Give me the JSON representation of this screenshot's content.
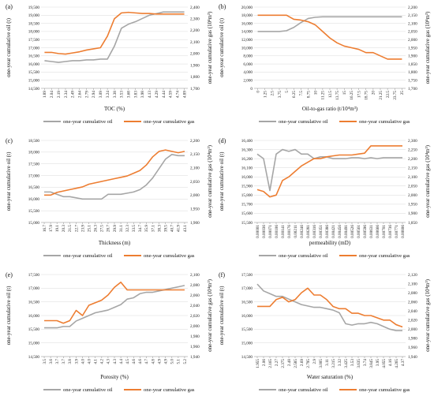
{
  "colors": {
    "oil": "#a6a6a6",
    "gas": "#ed7d31"
  },
  "legend": {
    "oil": "one-year cumulative oil",
    "gas": "one-year cumulative gas"
  },
  "chart_data": [
    {
      "type": "line",
      "panel": "(a)",
      "xlabel": "TOC (%)",
      "ylabel_left": "one-year cumulative oil (t)",
      "ylabel_right": "one-year cumulative gas (10⁴m³)",
      "ylim_left": [
        14500,
        19500
      ],
      "yticks_left": [
        14500,
        15000,
        15500,
        16000,
        16500,
        17000,
        17500,
        18000,
        18500,
        19000,
        19500
      ],
      "ylim_right": [
        1700,
        2400
      ],
      "yticks_right": [
        1700,
        1800,
        1900,
        2000,
        2100,
        2200,
        2300,
        2400
      ],
      "categories": [
        "1.89",
        "2.04",
        "2.19",
        "2.34",
        "2.49",
        "2.64",
        "2.79",
        "2.94",
        "3.09",
        "3.24",
        "3.38",
        "3.53",
        "3.68",
        "3.83",
        "3.98",
        "4.13",
        "4.29",
        "4.44",
        "4.59",
        "4.74",
        "4.89"
      ],
      "series": [
        {
          "name": "one-year cumulative oil",
          "axis": "left",
          "values": [
            16200,
            16150,
            16100,
            16150,
            16200,
            16200,
            16250,
            16250,
            16300,
            16300,
            17100,
            18200,
            18450,
            18600,
            18800,
            19000,
            19100,
            19200,
            19200,
            19200,
            19200
          ]
        },
        {
          "name": "one-year cumulative gas",
          "axis": "right",
          "values": [
            2010,
            2010,
            2000,
            1995,
            2005,
            2015,
            2030,
            2040,
            2050,
            2150,
            2300,
            2350,
            2355,
            2350,
            2345,
            2345,
            2340,
            2340,
            2340,
            2340,
            2340
          ]
        }
      ]
    },
    {
      "type": "line",
      "panel": "(b)",
      "xlabel": "Oil-to-gas ratio (t/10⁴m³)",
      "ylabel_left": "one-year cumulative oil (t)",
      "ylabel_right": "one-year cumulative gas (10⁴m³)",
      "ylim_left": [
        0,
        20000
      ],
      "yticks_left": [
        0,
        2000,
        4000,
        6000,
        8000,
        10000,
        12000,
        14000,
        16000,
        18000,
        20000
      ],
      "ylim_right": [
        1700,
        2200
      ],
      "yticks_right": [
        1700,
        1750,
        1800,
        1850,
        1900,
        1950,
        2000,
        2050,
        2100,
        2150,
        2200
      ],
      "categories": [
        "0",
        "1.25",
        "2.5",
        "3.75",
        "5",
        "6.25",
        "7.5",
        "8.75",
        "10",
        "11.25",
        "12.5",
        "13.75",
        "15",
        "16.25",
        "17.5",
        "18.75",
        "20",
        "21.25",
        "22.5",
        "23.75",
        "25"
      ],
      "series": [
        {
          "name": "one-year cumulative oil",
          "axis": "left",
          "values": [
            14000,
            14000,
            14000,
            14000,
            14200,
            15000,
            16200,
            17200,
            17500,
            17600,
            17600,
            17600,
            17600,
            17600,
            17600,
            17600,
            17600,
            17600,
            17600,
            17600,
            17600
          ]
        },
        {
          "name": "one-year cumulative gas",
          "axis": "right",
          "values": [
            2150,
            2150,
            2150,
            2150,
            2150,
            2125,
            2120,
            2110,
            2090,
            2050,
            2010,
            1980,
            1960,
            1950,
            1940,
            1920,
            1920,
            1900,
            1880,
            1880,
            1880
          ]
        }
      ]
    },
    {
      "type": "line",
      "panel": "(c)",
      "xlabel": "Thickness (m)",
      "ylabel_left": "one-year cumulative oil (t)",
      "ylabel_right": "one-year cumulative gas (10⁴m³)",
      "ylim_left": [
        15000,
        18500
      ],
      "yticks_left": [
        15000,
        15500,
        16000,
        16500,
        17000,
        17500,
        18000,
        18500
      ],
      "ylim_right": [
        1900,
        2200
      ],
      "yticks_right": [
        1900,
        1950,
        2000,
        2050,
        2100,
        2150,
        2200
      ],
      "categories": [
        "16.7",
        "17.9",
        "19.1",
        "20.3",
        "21.5",
        "22.7",
        "23.9",
        "25.1",
        "26.3",
        "27.5",
        "28.7",
        "29.9",
        "31.1",
        "32.3",
        "33.5",
        "34.7",
        "35.9",
        "37.1",
        "38.3",
        "39.5",
        "40.7",
        "41.9",
        "43.1"
      ],
      "series": [
        {
          "name": "one-year cumulative oil",
          "axis": "left",
          "values": [
            16300,
            16300,
            16200,
            16100,
            16100,
            16050,
            16000,
            16000,
            16000,
            16000,
            16200,
            16200,
            16200,
            16250,
            16300,
            16400,
            16600,
            16900,
            17300,
            17700,
            17900,
            17850,
            17850
          ]
        },
        {
          "name": "one-year cumulative gas",
          "axis": "right",
          "values": [
            2000,
            2000,
            2010,
            2015,
            2020,
            2025,
            2030,
            2040,
            2045,
            2050,
            2055,
            2060,
            2065,
            2070,
            2080,
            2090,
            2110,
            2140,
            2160,
            2165,
            2160,
            2155,
            2160
          ]
        }
      ]
    },
    {
      "type": "line",
      "panel": "(d)",
      "xlabel": "permeability (mD)",
      "ylabel_left": "one-year cumulative oil (t)",
      "ylabel_right": "one-year cumulative gas (10⁴m³)",
      "ylim_left": [
        15500,
        16400
      ],
      "yticks_left": [
        15500,
        15600,
        15700,
        15800,
        15900,
        16000,
        16100,
        16200,
        16300,
        16400
      ],
      "ylim_right": [
        1850,
        2300
      ],
      "yticks_right": [
        1850,
        1900,
        1950,
        2000,
        2050,
        2100,
        2150,
        2200,
        2250,
        2300
      ],
      "categories": [
        "0.00001",
        "0.00036",
        "0.00071",
        "0.00106",
        "0.00141",
        "0.00176",
        "0.00211",
        "0.00246",
        "0.00281",
        "0.00316",
        "0.00351",
        "0.00386",
        "0.00421",
        "0.00456",
        "0.00491",
        "0.00526",
        "0.00561",
        "0.00596",
        "0.00631",
        "0.00666",
        "0.00701",
        "0.00736",
        "0.00771",
        "0.00806"
      ],
      "series": [
        {
          "name": "one-year cumulative oil",
          "axis": "left",
          "values": [
            16250,
            16200,
            15850,
            16250,
            16300,
            16280,
            16300,
            16250,
            16250,
            16200,
            16220,
            16220,
            16200,
            16200,
            16200,
            16210,
            16210,
            16200,
            16210,
            16200,
            16210,
            16210,
            16210,
            16210
          ]
        },
        {
          "name": "one-year cumulative gas",
          "axis": "right",
          "values": [
            2030,
            2020,
            1990,
            2000,
            2080,
            2100,
            2130,
            2160,
            2180,
            2200,
            2200,
            2210,
            2215,
            2220,
            2220,
            2220,
            2225,
            2230,
            2270,
            2270,
            2270,
            2270,
            2270,
            2270
          ]
        }
      ]
    },
    {
      "type": "line",
      "panel": "(e)",
      "xlabel": "Porosity (%)",
      "ylabel_left": "one-year cumulative oil (t)",
      "ylabel_right": "one-year cumulative gas (10⁴m³)",
      "ylim_left": [
        14500,
        17500
      ],
      "yticks_left": [
        14500,
        15000,
        15500,
        16000,
        16500,
        17000,
        17500
      ],
      "ylim_right": [
        1940,
        2100
      ],
      "yticks_right": [
        1940,
        1960,
        1980,
        2000,
        2020,
        2040,
        2060,
        2080,
        2100
      ],
      "categories": [
        "3.5",
        "3.6",
        "3.7",
        "3.7",
        "3.8",
        "3.9",
        "4.0",
        "4.0",
        "4.1",
        "4.2",
        "4.3",
        "4.3",
        "4.4",
        "4.5",
        "4.6",
        "4.6",
        "4.7",
        "4.8",
        "4.9",
        "4.9",
        "5.0",
        "5.1",
        "5.2"
      ],
      "series": [
        {
          "name": "one-year cumulative oil",
          "axis": "left",
          "values": [
            15550,
            15550,
            15550,
            15600,
            15600,
            15800,
            15900,
            16000,
            16100,
            16150,
            16200,
            16300,
            16400,
            16600,
            16650,
            16800,
            16850,
            16850,
            16900,
            16950,
            17000,
            17050,
            17100
          ]
        },
        {
          "name": "one-year cumulative gas",
          "axis": "right",
          "values": [
            2010,
            2010,
            2010,
            2005,
            2010,
            2030,
            2020,
            2040,
            2045,
            2050,
            2060,
            2075,
            2085,
            2070,
            2070,
            2070,
            2070,
            2070,
            2070,
            2070,
            2070,
            2070,
            2070
          ]
        }
      ]
    },
    {
      "type": "line",
      "panel": "(f)",
      "xlabel": "Water saturation (%)",
      "ylabel_left": "one-year cumulative oil (t)",
      "ylabel_right": "one-year cumulative gas (10⁴m³)",
      "ylim_left": [
        14500,
        17500
      ],
      "yticks_left": [
        14500,
        15000,
        15500,
        16000,
        16500,
        17000,
        17500
      ],
      "ylim_right": [
        1940,
        2120
      ],
      "yticks_right": [
        1940,
        1960,
        1980,
        2000,
        2020,
        2040,
        2060,
        2080,
        2100,
        2120
      ],
      "categories": [
        "1.955",
        "2.06",
        "2.165",
        "2.27",
        "2.375",
        "2.48",
        "2.585",
        "2.69",
        "2.795",
        "2.9",
        "3.005",
        "3.11",
        "3.215",
        "3.32",
        "3.425",
        "3.53",
        "3.635",
        "3.74",
        "3.845",
        "3.95",
        "4.055",
        "4.16",
        "4.265",
        "4.37"
      ],
      "series": [
        {
          "name": "one-year cumulative oil",
          "axis": "left",
          "values": [
            17150,
            16900,
            16800,
            16700,
            16700,
            16600,
            16500,
            16400,
            16350,
            16300,
            16300,
            16250,
            16200,
            16100,
            15700,
            15650,
            15700,
            15700,
            15750,
            15700,
            15600,
            15500,
            15450,
            15450
          ]
        },
        {
          "name": "one-year cumulative gas",
          "axis": "right",
          "values": [
            2050,
            2050,
            2050,
            2065,
            2070,
            2060,
            2065,
            2080,
            2090,
            2075,
            2075,
            2065,
            2050,
            2045,
            2045,
            2035,
            2035,
            2030,
            2030,
            2025,
            2020,
            2020,
            2010,
            2005
          ]
        }
      ]
    }
  ]
}
